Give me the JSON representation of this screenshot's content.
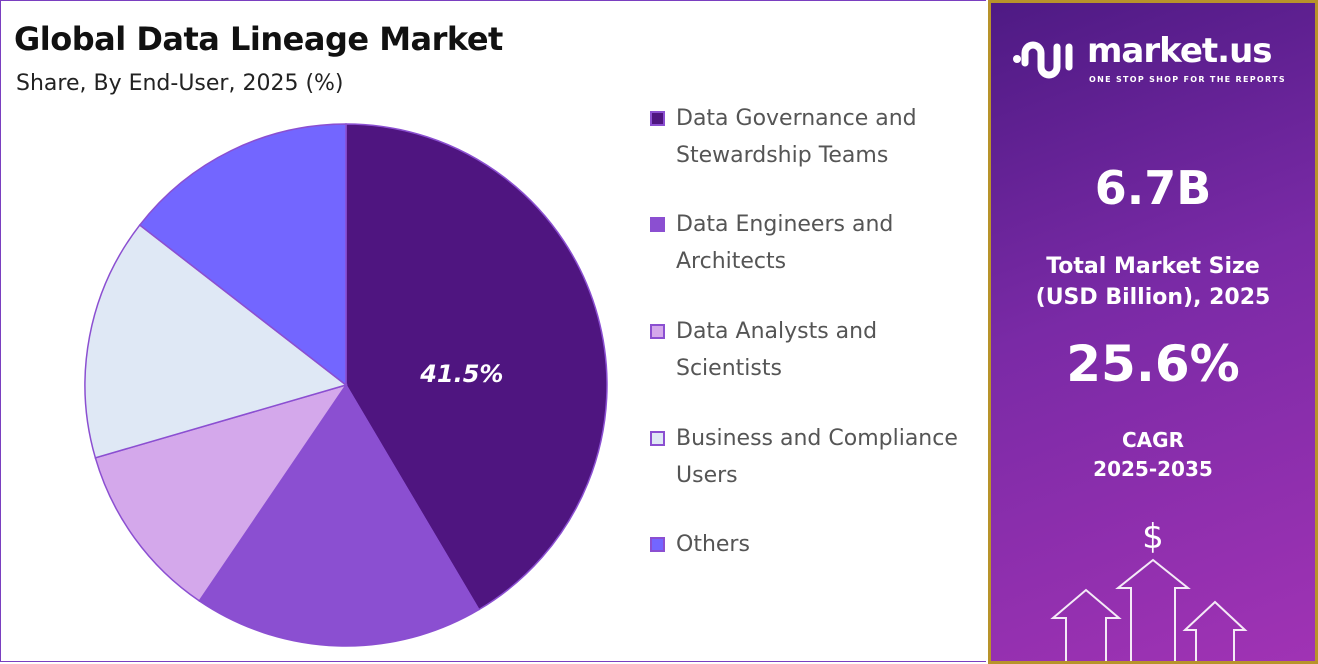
{
  "header": {
    "title": "Global Data Lineage Market",
    "subtitle": "Share, By End-User, 2025 (%)"
  },
  "chart_data": {
    "type": "pie",
    "title": "Global Data Lineage Market",
    "subtitle": "Share, By End-User, 2025 (%)",
    "categories": [
      "Data Governance and Stewardship Teams",
      "Data Engineers and Architects",
      "Data Analysts and Scientists",
      "Business and Compliance Users",
      "Others"
    ],
    "values": [
      41.5,
      18.0,
      11.0,
      15.0,
      14.5
    ],
    "colors": [
      "#4f1580",
      "#8b4fd1",
      "#d4a8eb",
      "#dfe8f5",
      "#7366ff"
    ],
    "data_labels": [
      "41.5%",
      "",
      "",
      "",
      ""
    ],
    "legend_position": "right"
  },
  "panel": {
    "brand": "market.us",
    "tagline": "ONE STOP SHOP FOR THE REPORTS",
    "market_size": "6.7B",
    "market_size_label_1": "Total Market Size",
    "market_size_label_2": "(USD Billion), 2025",
    "cagr": "25.6%",
    "cagr_label_1": "CAGR",
    "cagr_label_2": "2025-2035",
    "dollar_symbol": "$",
    "icons": [
      "market-us-logo",
      "dollar-icon",
      "up-arrow-icon"
    ]
  }
}
